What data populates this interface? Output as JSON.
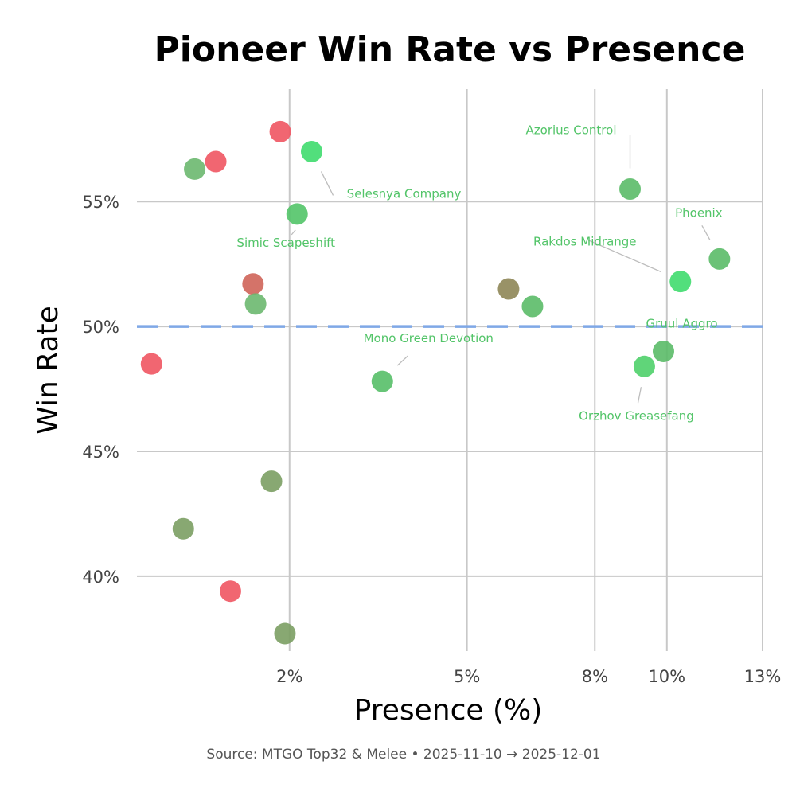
{
  "chart_data": {
    "type": "scatter",
    "title": "Pioneer Win Rate vs Presence",
    "xlabel": "Presence (%)",
    "ylabel": "Win Rate",
    "caption": "Source: MTGO Top32 & Melee  •  2025-11-10 → 2025-12-01",
    "x_scale": "sqrt",
    "xlim": [
      0.5,
      13.0
    ],
    "ylim": [
      37.0,
      59.5
    ],
    "x_ticks": [
      2,
      5,
      8,
      10,
      13
    ],
    "x_tick_labels": [
      "2%",
      "5%",
      "8%",
      "10%",
      "13%"
    ],
    "y_ticks": [
      40,
      45,
      50,
      55
    ],
    "y_tick_labels": [
      "40%",
      "45%",
      "50%",
      "55%"
    ],
    "reference_line": {
      "y": 50,
      "color": "#7fa8e6",
      "style": "dashed"
    },
    "grid": true,
    "points": [
      {
        "x": 0.6,
        "y": 48.5,
        "color": "#ef5562",
        "label": ""
      },
      {
        "x": 0.85,
        "y": 41.9,
        "color": "#7b9e63",
        "label": ""
      },
      {
        "x": 0.95,
        "y": 56.3,
        "color": "#6bb86f",
        "label": ""
      },
      {
        "x": 1.15,
        "y": 56.6,
        "color": "#ef5562",
        "label": ""
      },
      {
        "x": 1.3,
        "y": 39.4,
        "color": "#ef5562",
        "label": ""
      },
      {
        "x": 1.55,
        "y": 51.7,
        "color": "#cf6459",
        "label": ""
      },
      {
        "x": 1.58,
        "y": 50.9,
        "color": "#6bb86f",
        "label": ""
      },
      {
        "x": 1.77,
        "y": 43.8,
        "color": "#7b9e63",
        "label": ""
      },
      {
        "x": 1.88,
        "y": 57.8,
        "color": "#ef5562",
        "label": ""
      },
      {
        "x": 1.94,
        "y": 37.7,
        "color": "#7b9e63",
        "label": ""
      },
      {
        "x": 2.1,
        "y": 54.5,
        "color": "#52c468",
        "label": "Simic Scapeshift"
      },
      {
        "x": 2.3,
        "y": 57.0,
        "color": "#3fdc6e",
        "label": "Selesnya Company"
      },
      {
        "x": 3.4,
        "y": 47.8,
        "color": "#56bf68",
        "label": "Mono Green Devotion"
      },
      {
        "x": 5.9,
        "y": 51.5,
        "color": "#8e8656",
        "label": ""
      },
      {
        "x": 6.45,
        "y": 50.8,
        "color": "#5bbb68",
        "label": ""
      },
      {
        "x": 8.95,
        "y": 55.5,
        "color": "#5bbb68",
        "label": "Azorius Control"
      },
      {
        "x": 9.35,
        "y": 48.4,
        "color": "#4fd06a",
        "label": "Orzhov Greasefang"
      },
      {
        "x": 9.9,
        "y": 49.0,
        "color": "#5bbb68",
        "label": "Gruul Aggro"
      },
      {
        "x": 10.4,
        "y": 51.8,
        "color": "#3fdc6e",
        "label": "Rakdos Midrange"
      },
      {
        "x": 11.6,
        "y": 52.7,
        "color": "#5bbb68",
        "label": "Phoenix"
      }
    ],
    "label_color": "#52c468"
  }
}
